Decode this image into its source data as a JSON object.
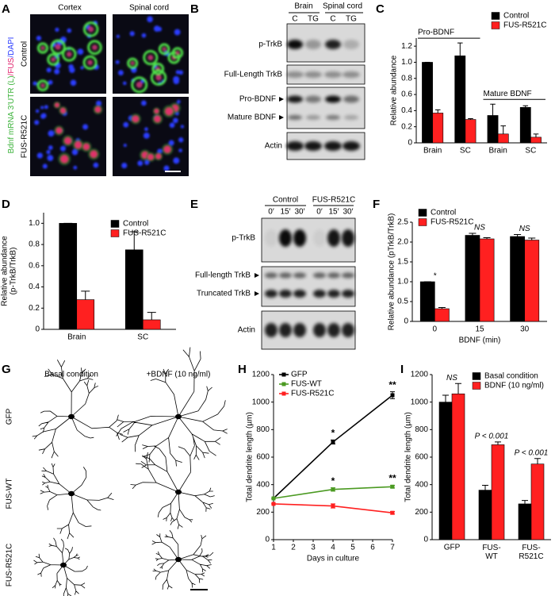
{
  "panel_labels": [
    "A",
    "B",
    "C",
    "D",
    "E",
    "F",
    "G",
    "H",
    "I"
  ],
  "panel_a": {
    "columns": [
      "Cortex",
      "Spinal cord"
    ],
    "rows": [
      "Control",
      "FUS-R521C"
    ],
    "stain": [
      "Bdnf mRNA 3′UTR (L)",
      "/FUS",
      "/DAPI"
    ]
  },
  "panel_b": {
    "groups": [
      "Brain",
      "Spinal cord"
    ],
    "lanes": [
      "C",
      "TG",
      "C",
      "TG"
    ],
    "rows": [
      "p-TrkB",
      "Full-Length TrkB",
      "Pro-BDNF",
      "Mature BDNF",
      "Actin"
    ]
  },
  "panel_e": {
    "groups": [
      "Control",
      "FUS-R521C"
    ],
    "lanes": [
      "0′",
      "15′",
      "30′",
      "0′",
      "15′",
      "30′"
    ],
    "rows": [
      "p-TrkB",
      "Full-length TrkB",
      "Truncated TrkB",
      "Actin"
    ]
  },
  "panel_g": {
    "columns": [
      "Basal condition",
      "+BDNF (10 ng/ml)"
    ],
    "rows": [
      "GFP",
      "FUS-WT",
      "FUS-R521C"
    ]
  },
  "chart_data": [
    {
      "type": "bar",
      "ylabel": "Relative abundance",
      "categories": [
        "Brain",
        "SC",
        "Brain",
        "SC"
      ],
      "group_labels": [
        "Pro-BDNF",
        "Mature BDNF"
      ],
      "ylim": [
        0,
        1.3
      ],
      "yticks": [
        0,
        0.2,
        0.4,
        0.6,
        0.8,
        {
          "value": 1,
          "label": "1.0"
        },
        1.2
      ],
      "legend": "upper right",
      "series": [
        {
          "name": "Control",
          "color": "#000000",
          "values": [
            1.0,
            1.08,
            0.34,
            0.44
          ],
          "errors": [
            0,
            0.16,
            0.14,
            0.02
          ]
        },
        {
          "name": "FUS-R521C",
          "color": "#ff2020",
          "values": [
            0.37,
            0.29,
            0.11,
            0.07
          ],
          "errors": [
            0.04,
            0.01,
            0.1,
            0.04
          ]
        }
      ]
    },
    {
      "type": "bar",
      "ylabel": [
        "Relative abundance",
        "(p-TrkB/TrkB)"
      ],
      "categories": [
        "Brain",
        "SC"
      ],
      "ylim": [
        0,
        1.1
      ],
      "yticks": [
        0,
        0.2,
        0.4,
        0.6,
        0.8,
        {
          "value": 1,
          "label": "1.0"
        }
      ],
      "legend": "upper right",
      "series": [
        {
          "name": "Control",
          "color": "#000000",
          "values": [
            1.0,
            0.75
          ],
          "errors": [
            0,
            0.17
          ]
        },
        {
          "name": "FUS-R521C",
          "color": "#ff2020",
          "values": [
            0.28,
            0.09
          ],
          "errors": [
            0.08,
            0.07
          ]
        }
      ]
    },
    {
      "type": "bar",
      "ylabel": "Relative abundance (pTrkB/TrkB)",
      "xlabel": "BDNF (min)",
      "categories": [
        "0",
        "15",
        "30"
      ],
      "annotations": [
        "*",
        "NS",
        "NS"
      ],
      "ylim": [
        0,
        2.5
      ],
      "yticks": [
        0,
        0.5,
        {
          "value": 1,
          "label": "1.0"
        },
        1.5,
        {
          "value": 2,
          "label": "2.0"
        },
        2.5
      ],
      "legend": "upper left",
      "series": [
        {
          "name": "Control",
          "color": "#000000",
          "values": [
            1.0,
            2.17,
            2.14
          ],
          "errors": [
            0,
            0.05,
            0.05
          ]
        },
        {
          "name": "FUS-R521C",
          "color": "#ff2020",
          "values": [
            0.32,
            2.08,
            2.05
          ],
          "errors": [
            0.03,
            0.03,
            0.05
          ]
        }
      ]
    },
    {
      "type": "line",
      "ylabel": "Total dendrite length (µm)",
      "xlabel": "Days in culture",
      "x": [
        1,
        4,
        7
      ],
      "xlim": [
        1,
        7
      ],
      "xticks": [
        1,
        2,
        3,
        4,
        5,
        6,
        7
      ],
      "ylim": [
        0,
        1200
      ],
      "yticks": [
        0,
        200,
        400,
        600,
        800,
        1000,
        1200
      ],
      "legend": "upper left",
      "series": [
        {
          "name": "GFP",
          "color": "#000000",
          "values": [
            300,
            710,
            1050
          ],
          "errors": [
            0,
            15,
            25
          ],
          "annotations": [
            null,
            "*",
            "**"
          ]
        },
        {
          "name": "FUS-WT",
          "color": "#4b9a22",
          "values": [
            300,
            365,
            385
          ],
          "errors": [
            0,
            12,
            10
          ],
          "annotations": [
            null,
            "*",
            "**"
          ]
        },
        {
          "name": "FUS-R521C",
          "color": "#ff2020",
          "values": [
            260,
            245,
            195
          ],
          "errors": [
            0,
            15,
            10
          ]
        }
      ]
    },
    {
      "type": "bar",
      "ylabel": "Total dendrite length (µm)",
      "categories": [
        "GFP",
        "FUS-WT",
        "FUS-R521C"
      ],
      "annotations": [
        "NS",
        "P < 0.001",
        "P < 0.001"
      ],
      "ylim": [
        0,
        1200
      ],
      "yticks": [
        0,
        200,
        400,
        600,
        800,
        1000,
        1200
      ],
      "legend": "upper right",
      "series": [
        {
          "name": "Basal condition",
          "color": "#000000",
          "values": [
            1000,
            360,
            260
          ],
          "errors": [
            50,
            35,
            25
          ]
        },
        {
          "name": "BDNF (10 ng/ml)",
          "color": "#ff2020",
          "values": [
            1060,
            690,
            550
          ],
          "errors": [
            75,
            20,
            40
          ]
        }
      ]
    }
  ]
}
